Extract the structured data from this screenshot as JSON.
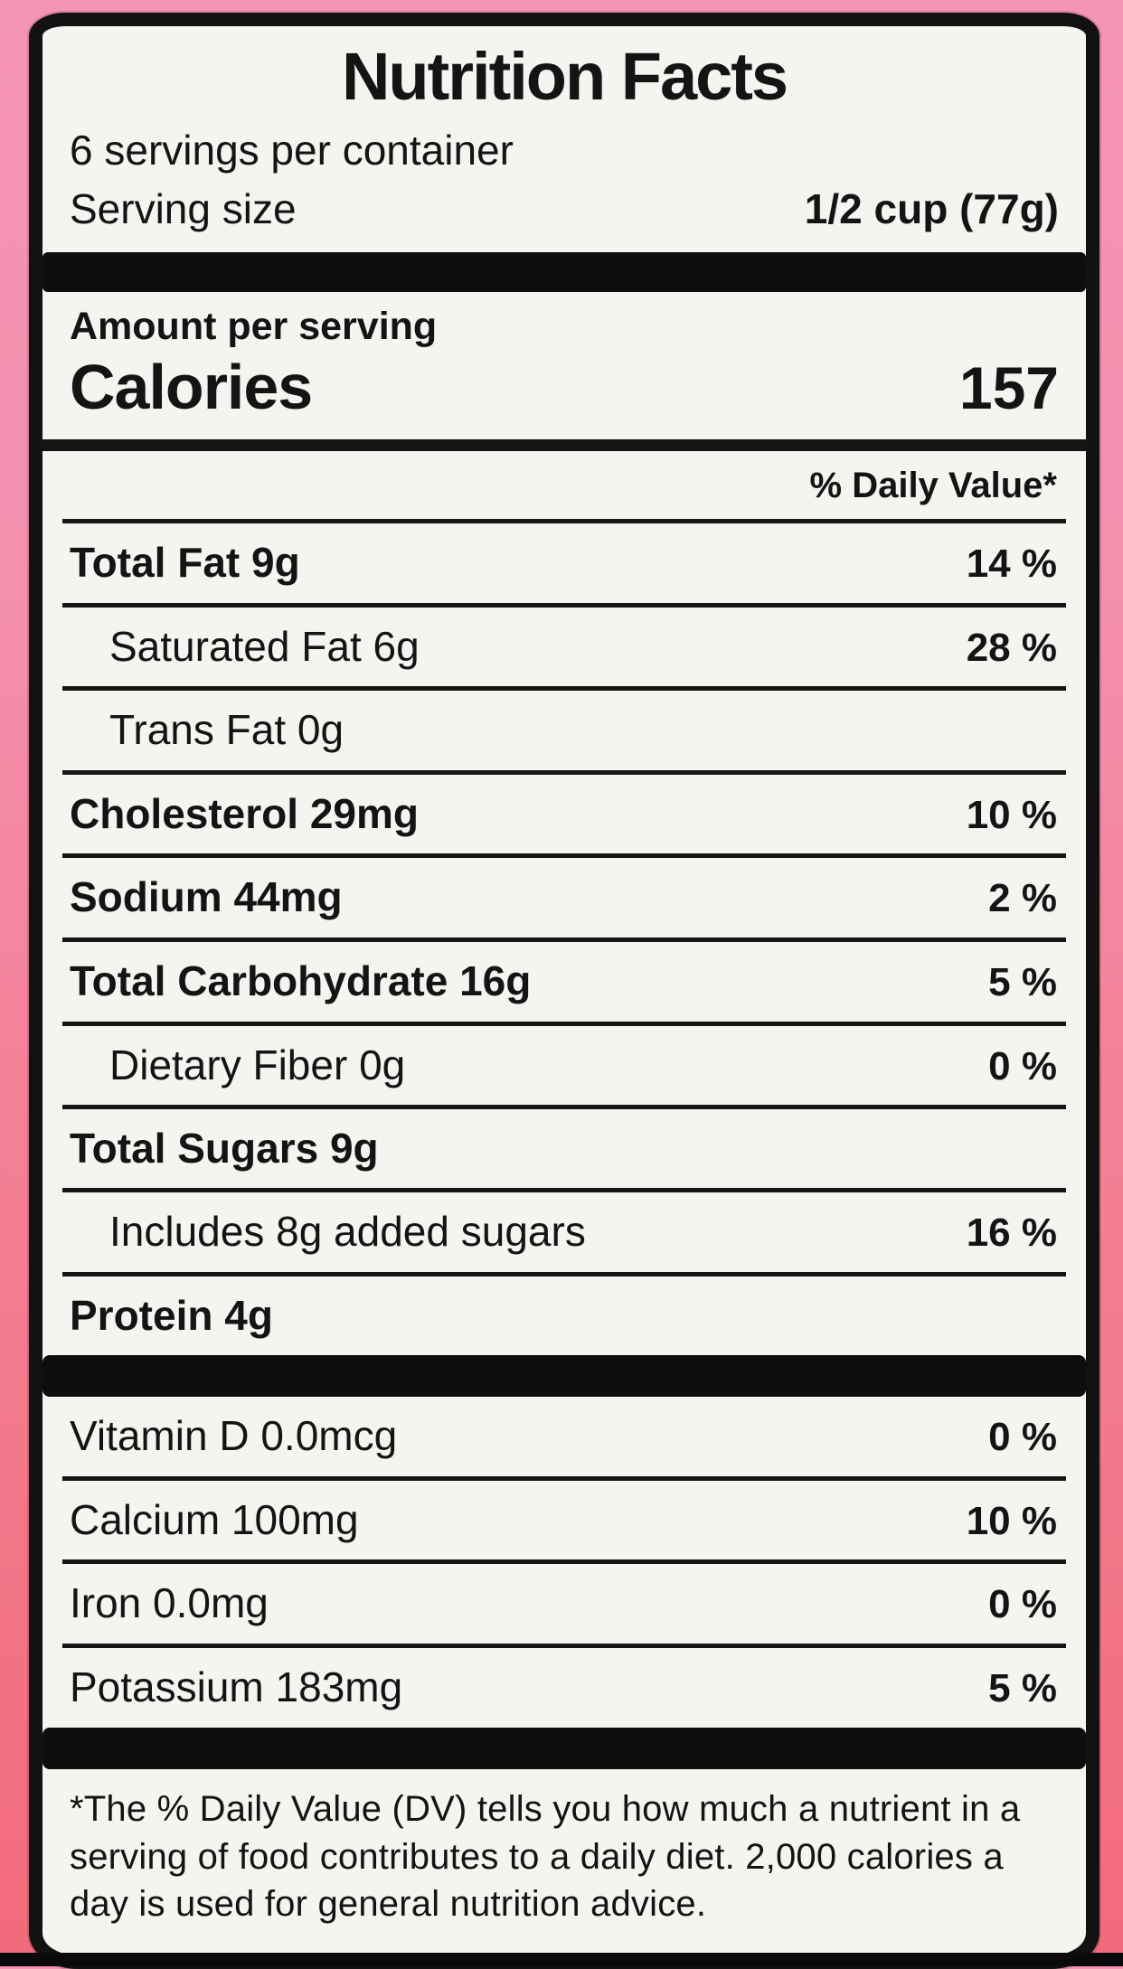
{
  "label": {
    "title": "Nutrition Facts",
    "servings_per_container": "6 servings per container",
    "serving_size_label": "Serving size",
    "serving_size_value": "1/2 cup (77g)",
    "amount_per_serving": "Amount per serving",
    "calories_label": "Calories",
    "calories_value": "157",
    "daily_value_header": "% Daily Value*",
    "rows": [
      {
        "name": "Total Fat 9g",
        "percent": "14 %"
      },
      {
        "name": "Saturated Fat 6g",
        "percent": "28 %"
      },
      {
        "name": "Trans Fat 0g",
        "percent": ""
      },
      {
        "name": "Cholesterol 29mg",
        "percent": "10 %"
      },
      {
        "name": "Sodium 44mg",
        "percent": "2 %"
      },
      {
        "name": "Total Carbohydrate 16g",
        "percent": "5 %"
      },
      {
        "name": "Dietary Fiber 0g",
        "percent": "0 %"
      },
      {
        "name": "Total Sugars 9g",
        "percent": ""
      },
      {
        "name": "Includes 8g added sugars",
        "percent": "16 %"
      },
      {
        "name": "Protein 4g",
        "percent": ""
      }
    ],
    "micronutrients": [
      {
        "name": "Vitamin D 0.0mcg",
        "percent": "0 %"
      },
      {
        "name": "Calcium 100mg",
        "percent": "10 %"
      },
      {
        "name": "Iron 0.0mg",
        "percent": "0 %"
      },
      {
        "name": "Potassium 183mg",
        "percent": "5 %"
      }
    ],
    "footnote": "*The % Daily Value (DV) tells you how much a nutrient in a serving of food contributes to a daily diet. 2,000 calories a day is used for general nutrition advice."
  },
  "colors": {
    "background_top": "#f595b4",
    "background_bottom": "#f26a7c",
    "label_background": "#f5f4f1",
    "label_border": "#121212",
    "text": "#141414"
  }
}
